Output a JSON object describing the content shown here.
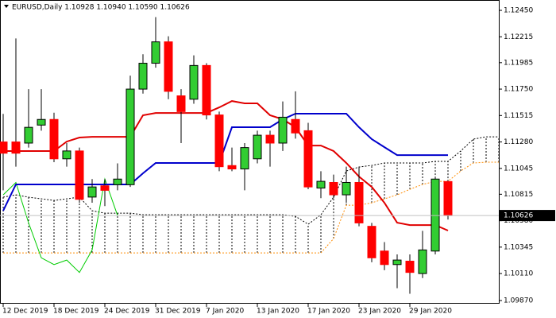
{
  "chart_data": {
    "type": "candlestick",
    "title": "EURUSD,Daily  1.10928 1.10940 1.10590 1.10626",
    "categories": [
      "12 Dec 2019",
      null,
      null,
      null,
      "18 Dec 2019",
      null,
      null,
      null,
      "24 Dec 2019",
      null,
      null,
      null,
      "31 Dec 2019",
      null,
      null,
      null,
      "7 Jan 2020",
      null,
      null,
      null,
      "13 Jan 2020",
      null,
      null,
      null,
      "17 Jan 2020",
      null,
      null,
      null,
      "23 Jan 2020",
      null,
      null,
      null,
      "29 Jan 2020",
      null,
      null,
      null,
      null,
      null,
      null,
      null
    ],
    "open": [
      1.1128,
      1.1128,
      1.1127,
      1.1143,
      1.1148,
      1.1113,
      1.112,
      1.1079,
      1.1089,
      1.109,
      1.109,
      1.1175,
      1.1198,
      1.1217,
      1.1169,
      1.1166,
      1.1196,
      1.1152,
      1.1107,
      1.1104,
      1.1113,
      1.1134,
      1.1127,
      1.1148,
      1.1138,
      1.1087,
      1.1092,
      1.1081,
      1.1092,
      1.1053,
      1.1031,
      1.1019,
      1.1022,
      1.1011,
      1.1031,
      1.10928,
      null,
      null,
      null,
      null
    ],
    "high": [
      1.1153,
      1.122,
      1.1175,
      1.1175,
      1.1154,
      1.1127,
      1.1123,
      1.1095,
      1.1095,
      1.1109,
      1.1187,
      1.1206,
      1.1239,
      1.1222,
      1.1175,
      1.1205,
      1.1198,
      1.1155,
      1.1123,
      1.1127,
      1.1138,
      1.1138,
      1.1164,
      1.1173,
      1.1145,
      1.1102,
      1.1099,
      1.1106,
      1.1106,
      1.1056,
      1.1039,
      1.1028,
      1.1028,
      1.1049,
      1.1097,
      1.1094,
      null,
      null,
      null,
      null
    ],
    "low": [
      1.1085,
      1.1106,
      1.1123,
      1.1138,
      1.111,
      1.1106,
      1.1074,
      1.1074,
      1.1071,
      1.1085,
      1.1088,
      1.1171,
      1.1194,
      1.1166,
      1.1127,
      1.1162,
      1.1148,
      1.1102,
      1.1102,
      1.1085,
      1.1109,
      1.1106,
      1.112,
      1.1131,
      1.1086,
      1.1078,
      1.1078,
      1.1074,
      1.1053,
      1.1021,
      1.1014,
      1.0998,
      1.0993,
      1.1007,
      1.1028,
      1.1059,
      null,
      null,
      null,
      null
    ],
    "close": [
      1.1118,
      1.1118,
      1.1141,
      1.1148,
      1.1113,
      1.112,
      1.1077,
      1.1088,
      1.1085,
      1.1095,
      1.1175,
      1.1198,
      1.1217,
      1.1173,
      1.1155,
      1.1196,
      1.1152,
      1.1106,
      1.1104,
      1.1123,
      1.1134,
      1.1127,
      1.115,
      1.1136,
      1.1088,
      1.1093,
      1.1081,
      1.1092,
      1.1056,
      1.1025,
      1.1019,
      1.1023,
      1.1012,
      1.1032,
      1.1095,
      1.10626,
      null,
      null,
      null,
      null
    ],
    "up_color": "#32cd32",
    "down_color": "#ff0000",
    "lines": [
      {
        "color": "#e00000",
        "width": 2,
        "dashed": false,
        "values": [
          1.11199,
          1.11199,
          1.11199,
          1.11199,
          1.11199,
          1.11283,
          1.11319,
          1.11326,
          1.11326,
          1.11326,
          1.11326,
          1.11517,
          1.11538,
          1.11538,
          1.11538,
          1.11538,
          1.11538,
          1.11587,
          1.11644,
          1.11623,
          1.11623,
          1.11517,
          1.11481,
          1.11411,
          1.11248,
          1.11248,
          1.11199,
          1.11093,
          1.10972,
          1.1088,
          1.10739,
          1.10562,
          1.10541,
          1.10541,
          1.10541,
          1.10492,
          null,
          null,
          null,
          null
        ]
      },
      {
        "color": "#0000cc",
        "width": 2,
        "dashed": false,
        "values": [
          1.10668,
          1.10902,
          1.10902,
          1.10902,
          1.10902,
          1.10902,
          1.10902,
          1.10902,
          1.10902,
          1.10902,
          1.10902,
          1.11001,
          1.11093,
          1.11093,
          1.11093,
          1.11093,
          1.11093,
          1.11093,
          1.11411,
          1.11411,
          1.11411,
          1.11411,
          1.11481,
          1.11531,
          1.11531,
          1.11531,
          1.11531,
          1.11531,
          1.11411,
          1.11305,
          1.11234,
          1.11163,
          1.11163,
          1.11163,
          1.11163,
          1.11163,
          null,
          null,
          null,
          null
        ]
      },
      {
        "color": "#00cc00",
        "width": 1,
        "dashed": false,
        "values": [
          1.1081,
          1.1092,
          1.1056,
          1.1025,
          1.1019,
          1.1023,
          1.1012,
          1.1032,
          1.1095,
          1.10626,
          null,
          null,
          null,
          null,
          null,
          null,
          null,
          null,
          null,
          null,
          null,
          null,
          null,
          null,
          null,
          null,
          null,
          null,
          null,
          null,
          null,
          null,
          null,
          null,
          null,
          null,
          null,
          null,
          null,
          null
        ]
      },
      {
        "color": "#ff8c00",
        "width": 1,
        "dashed": true,
        "values": [
          1.10294,
          1.10294,
          1.10294,
          1.10294,
          1.10294,
          1.10294,
          1.10294,
          1.10294,
          1.10294,
          1.10294,
          1.10294,
          1.10294,
          1.10294,
          1.10294,
          1.10294,
          1.10294,
          1.10294,
          1.10294,
          1.10294,
          1.10294,
          1.10294,
          1.10294,
          1.10294,
          1.10294,
          1.10294,
          1.10294,
          1.10421,
          1.10718,
          1.10718,
          1.10739,
          1.10774,
          1.1081,
          1.10859,
          1.10902,
          1.1093,
          1.1093,
          1.11022,
          1.11093,
          1.111,
          1.111
        ]
      },
      {
        "color": "#000000",
        "width": 1,
        "dashed": true,
        "values": [
          1.10789,
          1.1081,
          1.10789,
          1.10774,
          1.1076,
          1.10774,
          1.10789,
          1.10668,
          1.10647,
          1.10647,
          1.10647,
          1.10633,
          1.10633,
          1.10633,
          1.10633,
          1.10633,
          1.10633,
          1.10633,
          1.10633,
          1.10633,
          1.10633,
          1.10633,
          1.10633,
          1.10619,
          1.10548,
          1.10633,
          1.10789,
          1.11022,
          1.11057,
          1.11071,
          1.11093,
          1.11093,
          1.11093,
          1.11093,
          1.11107,
          1.11107,
          1.11199,
          1.11305,
          1.11326,
          1.11326
        ]
      }
    ],
    "ylim": [
      1.09842,
      1.12528
    ],
    "yticks": [
      {
        "value": 1.1245,
        "label": "1.12450"
      },
      1.12215,
      1.11985,
      {
        "value": 1.1175,
        "label": "1.11750"
      },
      1.11515,
      {
        "value": 1.1128,
        "label": "1.11280"
      },
      1.11045,
      1.10815,
      {
        "value": 1.1058,
        "label": "1.10580"
      },
      1.10345,
      {
        "value": 1.1011,
        "label": "1.10110"
      },
      {
        "value": 1.0987,
        "label": "1.09870"
      }
    ],
    "last_price": {
      "value": 1.10626,
      "label": "1.10626"
    }
  }
}
